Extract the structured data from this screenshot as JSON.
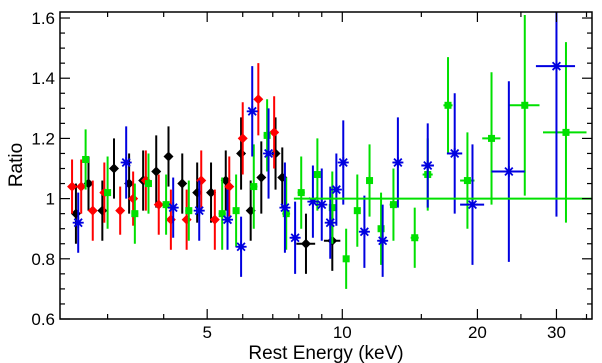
{
  "chart_data": {
    "type": "scatter",
    "title": "",
    "xlabel": "Rest Energy (keV)",
    "ylabel": "Ratio",
    "xscale": "log",
    "xlim": [
      2.35,
      36
    ],
    "ylim": [
      0.6,
      1.62
    ],
    "x_ticks": [
      5,
      10,
      20,
      30
    ],
    "y_ticks": [
      0.6,
      0.8,
      1,
      1.2,
      1.4,
      1.6
    ],
    "x_tick_labels": [
      "5",
      "10",
      "20",
      "30"
    ],
    "y_tick_labels": [
      "0.6",
      "0.8",
      "1",
      "1.2",
      "1.4",
      "1.6"
    ],
    "grid": false,
    "model_line": {
      "y": 1.0,
      "x_from": 7.8,
      "x_to": 36,
      "color": "#00e000"
    },
    "series": [
      {
        "color": "#000000",
        "marker": "diamond",
        "points": [
          [
            2.55,
            0.95,
            0.04,
            0.1
          ],
          [
            2.72,
            1.05,
            0.04,
            0.09
          ],
          [
            2.92,
            0.96,
            0.05,
            0.1
          ],
          [
            3.1,
            1.1,
            0.05,
            0.1
          ],
          [
            3.35,
            1.05,
            0.05,
            0.1
          ],
          [
            3.6,
            1.06,
            0.06,
            0.1
          ],
          [
            3.85,
            1.09,
            0.06,
            0.12
          ],
          [
            4.1,
            1.14,
            0.07,
            0.1
          ],
          [
            4.4,
            1.05,
            0.08,
            0.1
          ],
          [
            4.75,
            1.02,
            0.08,
            0.1
          ],
          [
            5.1,
            1.02,
            0.09,
            0.1
          ],
          [
            5.5,
            1.06,
            0.1,
            0.1
          ],
          [
            5.95,
            1.15,
            0.1,
            0.12
          ],
          [
            6.25,
            0.96,
            0.1,
            0.1
          ],
          [
            6.6,
            1.07,
            0.1,
            0.12
          ],
          [
            7.1,
            1.15,
            0.12,
            0.12
          ],
          [
            7.35,
            1.07,
            0.12,
            0.1
          ],
          [
            8.3,
            0.85,
            0.4,
            0.1
          ],
          [
            9.5,
            0.86,
            0.4,
            0.1
          ]
        ]
      },
      {
        "color": "#ff0000",
        "marker": "diamond",
        "points": [
          [
            2.5,
            1.04,
            0.04,
            0.09
          ],
          [
            2.62,
            1.04,
            0.04,
            0.09
          ],
          [
            2.78,
            0.96,
            0.04,
            0.1
          ],
          [
            2.95,
            1.02,
            0.04,
            0.1
          ],
          [
            3.2,
            0.96,
            0.05,
            0.08
          ],
          [
            3.42,
            1.0,
            0.05,
            0.09
          ],
          [
            3.65,
            1.06,
            0.06,
            0.1
          ],
          [
            3.9,
            0.98,
            0.06,
            0.1
          ],
          [
            4.15,
            0.93,
            0.07,
            0.1
          ],
          [
            4.5,
            0.93,
            0.07,
            0.1
          ],
          [
            4.85,
            1.06,
            0.08,
            0.1
          ],
          [
            5.2,
            0.93,
            0.09,
            0.1
          ],
          [
            5.6,
            1.04,
            0.1,
            0.1
          ],
          [
            6.0,
            1.2,
            0.1,
            0.12
          ],
          [
            6.5,
            1.33,
            0.1,
            0.12
          ],
          [
            7.05,
            1.22,
            0.15,
            0.12
          ]
        ]
      },
      {
        "color": "#00e000",
        "marker": "square",
        "points": [
          [
            2.68,
            1.13,
            0.04,
            0.1
          ],
          [
            3.0,
            1.02,
            0.05,
            0.12
          ],
          [
            3.45,
            0.95,
            0.06,
            0.1
          ],
          [
            3.7,
            1.05,
            0.06,
            0.1
          ],
          [
            4.05,
            0.98,
            0.07,
            0.1
          ],
          [
            4.55,
            0.96,
            0.08,
            0.1
          ],
          [
            5.4,
            0.95,
            0.1,
            0.12
          ],
          [
            5.8,
            0.96,
            0.1,
            0.12
          ],
          [
            6.35,
            1.04,
            0.12,
            0.14
          ],
          [
            6.8,
            1.21,
            0.12,
            0.12
          ],
          [
            7.5,
            0.95,
            0.15,
            0.12
          ],
          [
            8.1,
            1.02,
            0.15,
            0.12
          ],
          [
            8.8,
            1.08,
            0.15,
            0.12
          ],
          [
            9.5,
            0.97,
            0.15,
            0.12
          ],
          [
            10.2,
            0.8,
            0.15,
            0.1
          ],
          [
            10.8,
            0.96,
            0.18,
            0.12
          ],
          [
            11.5,
            1.06,
            0.2,
            0.12
          ],
          [
            12.2,
            0.9,
            0.2,
            0.12
          ],
          [
            13.0,
            0.98,
            0.25,
            0.12
          ],
          [
            14.5,
            0.87,
            0.3,
            0.1
          ],
          [
            15.5,
            1.08,
            0.4,
            0.12
          ],
          [
            17.2,
            1.31,
            0.4,
            0.16
          ],
          [
            19.0,
            1.06,
            0.7,
            0.16
          ],
          [
            21.5,
            1.2,
            1.0,
            0.22
          ],
          [
            25.5,
            1.31,
            2.0,
            0.3
          ],
          [
            31.5,
            1.22,
            3.5,
            0.3
          ]
        ]
      },
      {
        "color": "#0000e0",
        "marker": "star",
        "points": [
          [
            2.58,
            0.92,
            0.04,
            0.1
          ],
          [
            3.3,
            1.12,
            0.05,
            0.12
          ],
          [
            4.2,
            0.97,
            0.07,
            0.1
          ],
          [
            4.8,
            0.96,
            0.08,
            0.1
          ],
          [
            5.55,
            0.93,
            0.09,
            0.1
          ],
          [
            5.95,
            0.84,
            0.1,
            0.1
          ],
          [
            6.3,
            1.29,
            0.1,
            0.15
          ],
          [
            6.85,
            1.15,
            0.12,
            0.15
          ],
          [
            7.45,
            0.97,
            0.12,
            0.15
          ],
          [
            7.85,
            0.87,
            0.15,
            0.12
          ],
          [
            8.6,
            0.99,
            0.15,
            0.12
          ],
          [
            9.0,
            0.98,
            0.15,
            0.12
          ],
          [
            9.4,
            0.92,
            0.15,
            0.12
          ],
          [
            9.7,
            1.03,
            0.15,
            0.12
          ],
          [
            10.05,
            1.12,
            0.18,
            0.14
          ],
          [
            11.2,
            0.89,
            0.2,
            0.12
          ],
          [
            12.3,
            0.86,
            0.25,
            0.12
          ],
          [
            13.3,
            1.12,
            0.3,
            0.15
          ],
          [
            15.5,
            1.11,
            0.5,
            0.14
          ],
          [
            17.8,
            1.15,
            0.7,
            0.2
          ],
          [
            19.5,
            0.98,
            1.2,
            0.2
          ],
          [
            23.5,
            1.09,
            2.0,
            0.3
          ],
          [
            30.0,
            1.44,
            3.0,
            0.5
          ]
        ]
      }
    ]
  }
}
